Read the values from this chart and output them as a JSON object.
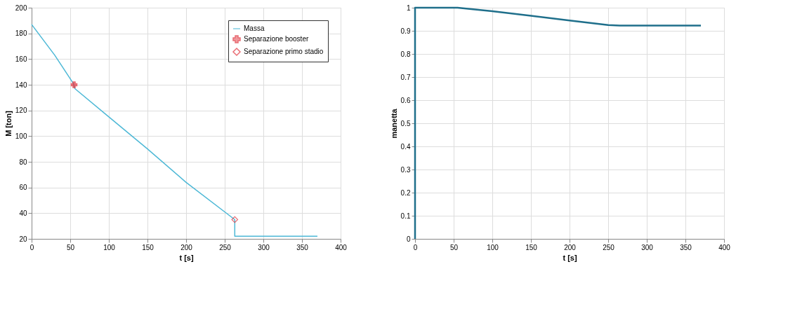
{
  "chart_data": [
    {
      "type": "line",
      "xlabel": "t [s]",
      "ylabel": "M [ton]",
      "xlim": [
        0,
        400
      ],
      "ylim": [
        20,
        200
      ],
      "xticks": [
        0,
        50,
        100,
        150,
        200,
        250,
        300,
        350,
        400
      ],
      "yticks": [
        20,
        40,
        60,
        80,
        100,
        120,
        140,
        160,
        180,
        200
      ],
      "grid": true,
      "legend": "top right",
      "series": [
        {
          "name": "Massa",
          "type": "line",
          "color": "#4db8d6",
          "x": [
            0,
            30,
            54,
            56,
            100,
            150,
            200,
            263,
            263,
            370
          ],
          "values": [
            187,
            163,
            141,
            137,
            115,
            90,
            64,
            35,
            22,
            22
          ]
        },
        {
          "name": "Separazione booster",
          "type": "scatter",
          "marker": "cross",
          "color": "#e0303a",
          "x": [
            55
          ],
          "values": [
            140
          ]
        },
        {
          "name": "Separazione primo stadio",
          "type": "scatter",
          "marker": "diamond",
          "color": "#e0303a",
          "x": [
            263
          ],
          "values": [
            35
          ]
        }
      ]
    },
    {
      "type": "line",
      "xlabel": "t [s]",
      "ylabel": "manetta",
      "xlim": [
        0,
        400
      ],
      "ylim": [
        0,
        1
      ],
      "xticks": [
        0,
        50,
        100,
        150,
        200,
        250,
        300,
        350,
        400
      ],
      "yticks": [
        0,
        0.1,
        0.2,
        0.3,
        0.4,
        0.5,
        0.6,
        0.7,
        0.8,
        0.9,
        1
      ],
      "grid": true,
      "series": [
        {
          "color": "#1f6f8b",
          "x": [
            0,
            0,
            55,
            100,
            150,
            200,
            250,
            265,
            370
          ],
          "values": [
            0,
            1,
            1,
            0.985,
            0.965,
            0.945,
            0.925,
            0.923,
            0.923
          ]
        }
      ]
    }
  ]
}
